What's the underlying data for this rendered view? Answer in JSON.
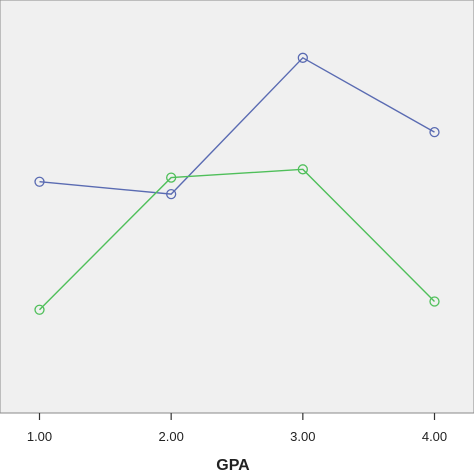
{
  "chart_data": {
    "type": "line",
    "title": "",
    "xlabel": "GPA",
    "ylabel": "",
    "x": [
      1,
      2,
      3,
      4
    ],
    "x_tick_labels": [
      "1.00",
      "2.00",
      "3.00",
      "4.00"
    ],
    "xlim": [
      0.7,
      4.3
    ],
    "ylim": [
      0,
      100
    ],
    "y_ticks_visible": false,
    "grid": false,
    "legend": "none",
    "background_color": "#f0f0f0",
    "series": [
      {
        "color": "#5a6bb2",
        "values": [
          56,
          53,
          86,
          68
        ]
      },
      {
        "color": "#4fbf5a",
        "values": [
          25,
          57,
          59,
          27
        ]
      }
    ]
  }
}
